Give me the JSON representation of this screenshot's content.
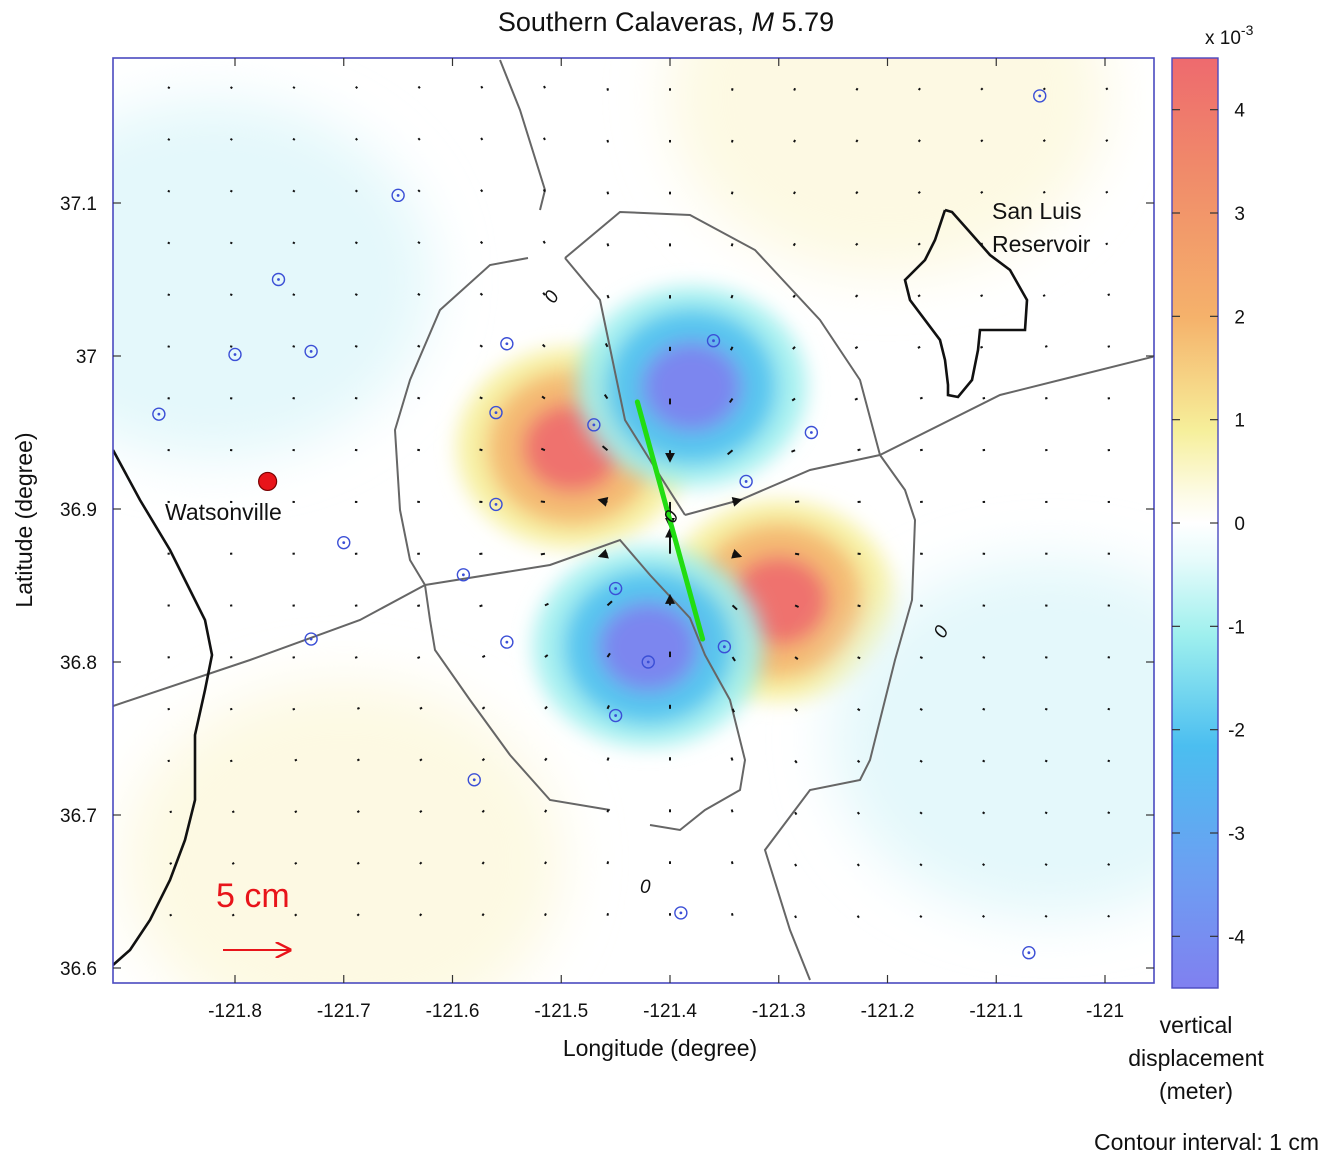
{
  "chart_data": {
    "type": "heatmap",
    "title": "Southern Calaveras, M 5.79",
    "title_parts": {
      "text": "Southern Calaveras, ",
      "magnitude_symbol": "M",
      "magnitude_value": "5.79"
    },
    "xlabel": "Longitude (degree)",
    "ylabel": "Latitude  (degree)",
    "xlim": [
      -121.88,
      -120.95
    ],
    "ylim": [
      36.59,
      37.2
    ],
    "xticks": [
      -121.8,
      -121.7,
      -121.6,
      -121.5,
      -121.4,
      -121.3,
      -121.2,
      -121.1,
      -121.0
    ],
    "xtick_labels": [
      "-121.8",
      "-121.7",
      "-121.6",
      "-121.5",
      "-121.4",
      "-121.3",
      "-121.2",
      "-121.1",
      "-121"
    ],
    "yticks": [
      36.6,
      36.7,
      36.8,
      36.9,
      37.0,
      37.1
    ],
    "ytick_labels": [
      "36.6",
      "36.7",
      "36.8",
      "36.9",
      "37",
      "37.1"
    ],
    "grid": false,
    "colorbar": {
      "exponent_label": "x 10",
      "exponent": "-3",
      "range": [
        -4.5,
        4.5
      ],
      "ticks": [
        4,
        3,
        2,
        1,
        0,
        -1,
        -2,
        -3,
        -4
      ],
      "tick_labels": [
        "4",
        "3",
        "2",
        "1",
        "0",
        "-1",
        "-2",
        "-3",
        "-4"
      ],
      "label_lines": [
        "vertical",
        "displacement",
        "(meter)"
      ],
      "colors": [
        "#8080f0",
        "#4bbef0",
        "#9ff0ee",
        "#ffffff",
        "#f6ef9a",
        "#f5b26b",
        "#ee6a6e"
      ]
    },
    "contour_interval_label": "Contour interval: 1 cm",
    "contour_label": "0",
    "contour_level": 0,
    "lobes": [
      {
        "lon": -121.49,
        "lat": 36.94,
        "value": 4.0,
        "sign": "uplift"
      },
      {
        "lon": -121.38,
        "lat": 36.98,
        "value": -4.0,
        "sign": "subsidence"
      },
      {
        "lon": -121.3,
        "lat": 36.84,
        "value": 4.0,
        "sign": "uplift"
      },
      {
        "lon": -121.42,
        "lat": 36.81,
        "value": -4.0,
        "sign": "subsidence"
      },
      {
        "lon": -121.82,
        "lat": 37.05,
        "value": -0.5,
        "sign": "subsidence"
      },
      {
        "lon": -121.05,
        "lat": 36.75,
        "value": -0.5,
        "sign": "subsidence"
      },
      {
        "lon": -121.2,
        "lat": 37.17,
        "value": 0.3,
        "sign": "uplift"
      },
      {
        "lon": -121.7,
        "lat": 36.67,
        "value": 0.3,
        "sign": "uplift"
      }
    ],
    "fault_trace": {
      "start": [
        -121.43,
        36.97
      ],
      "end": [
        -121.37,
        36.815
      ],
      "color": "#22dd11"
    },
    "stations": [
      [
        -121.06,
        37.17
      ],
      [
        -121.65,
        37.105
      ],
      [
        -121.76,
        37.05
      ],
      [
        -121.73,
        37.003
      ],
      [
        -121.8,
        37.001
      ],
      [
        -121.87,
        36.962
      ],
      [
        -121.55,
        37.008
      ],
      [
        -121.56,
        36.963
      ],
      [
        -121.47,
        36.955
      ],
      [
        -121.36,
        37.01
      ],
      [
        -121.27,
        36.95
      ],
      [
        -121.33,
        36.918
      ],
      [
        -121.56,
        36.903
      ],
      [
        -121.7,
        36.878
      ],
      [
        -121.59,
        36.857
      ],
      [
        -121.45,
        36.848
      ],
      [
        -121.55,
        36.813
      ],
      [
        -121.73,
        36.815
      ],
      [
        -121.35,
        36.81
      ],
      [
        -121.42,
        36.8
      ],
      [
        -121.45,
        36.765
      ],
      [
        -121.58,
        36.723
      ],
      [
        -121.39,
        36.636
      ],
      [
        -121.07,
        36.61
      ]
    ],
    "vectors_note": "horizontal displacement arrows",
    "scale_arrow_label": "5 cm",
    "places": [
      {
        "name": "Watsonville",
        "lon": -121.77,
        "lat": 36.918,
        "marker": "red-dot"
      }
    ],
    "reservoir_label_lines": [
      "San Luis",
      "Reservoir"
    ]
  }
}
